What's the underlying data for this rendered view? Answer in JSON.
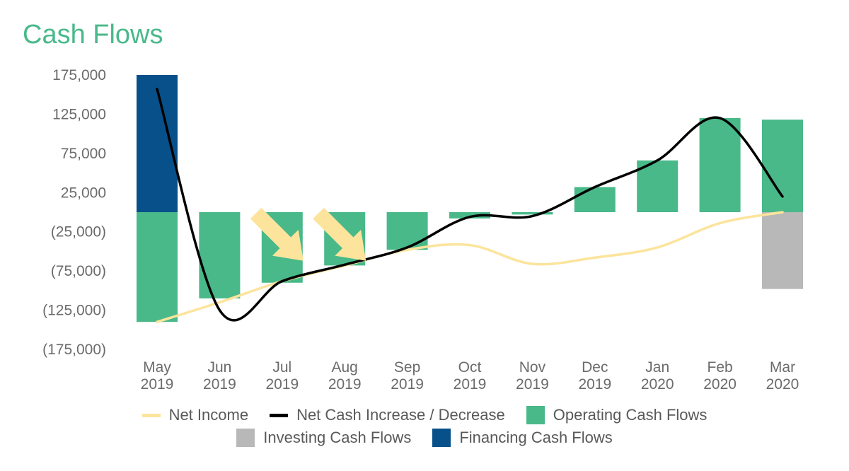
{
  "title": "Cash Flows",
  "colors": {
    "title": "#49B98A",
    "operating": "#49B98A",
    "investing": "#B8B8B8",
    "financing": "#08508A",
    "net_income": "#FCE49C",
    "net_cash": "#000000",
    "arrow": "#FCE49C"
  },
  "chart_data": {
    "type": "bar",
    "stacked": true,
    "title": "Cash Flows",
    "categories": [
      "May 2019",
      "Jun 2019",
      "Jul 2019",
      "Aug 2019",
      "Sep 2019",
      "Oct 2019",
      "Nov 2019",
      "Dec 2019",
      "Jan 2020",
      "Feb 2020",
      "Mar 2020"
    ],
    "category_lines": [
      [
        "May",
        "2019"
      ],
      [
        "Jun",
        "2019"
      ],
      [
        "Jul",
        "2019"
      ],
      [
        "Aug",
        "2019"
      ],
      [
        "Sep",
        "2019"
      ],
      [
        "Oct",
        "2019"
      ],
      [
        "Nov",
        "2019"
      ],
      [
        "Dec",
        "2019"
      ],
      [
        "Jan",
        "2020"
      ],
      [
        "Feb",
        "2020"
      ],
      [
        "Mar",
        "2020"
      ]
    ],
    "ylim": [
      -175000,
      175000
    ],
    "yticks": [
      175000,
      125000,
      75000,
      25000,
      -25000,
      -75000,
      -125000,
      -175000
    ],
    "ytick_labels": [
      "175,000",
      "125,000",
      "75,000",
      "25,000",
      "(25,000)",
      "(75,000)",
      "(125,000)",
      "(175,000)"
    ],
    "series": [
      {
        "name": "Operating Cash Flows",
        "kind": "bar",
        "values": [
          -140000,
          -110000,
          -90000,
          -68000,
          -48000,
          -8000,
          -3000,
          32000,
          66000,
          120000,
          118000
        ]
      },
      {
        "name": "Investing Cash Flows",
        "kind": "bar",
        "values": [
          0,
          0,
          0,
          0,
          0,
          0,
          0,
          0,
          0,
          0,
          -98000
        ]
      },
      {
        "name": "Financing Cash Flows",
        "kind": "bar",
        "values": [
          175000,
          0,
          0,
          0,
          0,
          0,
          0,
          0,
          0,
          0,
          0
        ]
      },
      {
        "name": "Net Income",
        "kind": "line",
        "values": [
          -140000,
          -115000,
          -88000,
          -68000,
          -48000,
          -42000,
          -66000,
          -58000,
          -45000,
          -14000,
          0
        ]
      },
      {
        "name": "Net Cash Increase / Decrease",
        "kind": "line",
        "values": [
          157000,
          -125000,
          -88000,
          -67000,
          -45000,
          -6000,
          -5000,
          32000,
          66000,
          120000,
          20000
        ]
      }
    ],
    "annotations": [
      {
        "type": "arrow",
        "direction": "down-right",
        "category": "Jul 2019"
      },
      {
        "type": "arrow",
        "direction": "down-right",
        "category": "Aug 2019"
      }
    ],
    "legend": {
      "placement": "bottom",
      "row1": [
        "Net Income",
        "Net Cash Increase / Decrease",
        "Operating Cash Flows"
      ],
      "row2": [
        "Investing Cash Flows",
        "Financing Cash Flows"
      ]
    }
  }
}
